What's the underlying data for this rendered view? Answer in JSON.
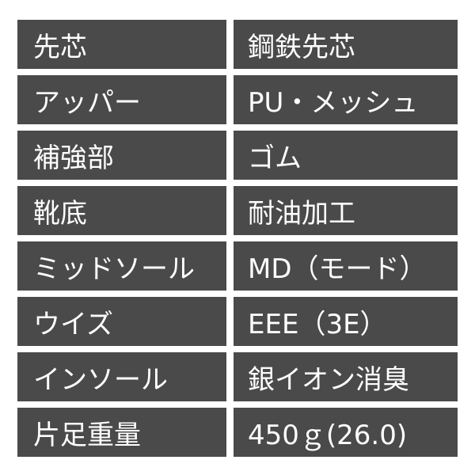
{
  "colors": {
    "cell_background": "#4a4a4a",
    "text": "#ffffff",
    "page_background": "#ffffff"
  },
  "specs": [
    {
      "label": "先芯",
      "value": "鋼鉄先芯"
    },
    {
      "label": "アッパー",
      "value": "PU・メッシュ"
    },
    {
      "label": "補強部",
      "value": "ゴム"
    },
    {
      "label": "靴底",
      "value": "耐油加工"
    },
    {
      "label": "ミッドソール",
      "value": "MD（モード）"
    },
    {
      "label": "ウイズ",
      "value": "EEE（3E）"
    },
    {
      "label": "インソール",
      "value": "銀イオン消臭"
    },
    {
      "label": "片足重量",
      "value": "450ｇ(26.0)"
    }
  ]
}
